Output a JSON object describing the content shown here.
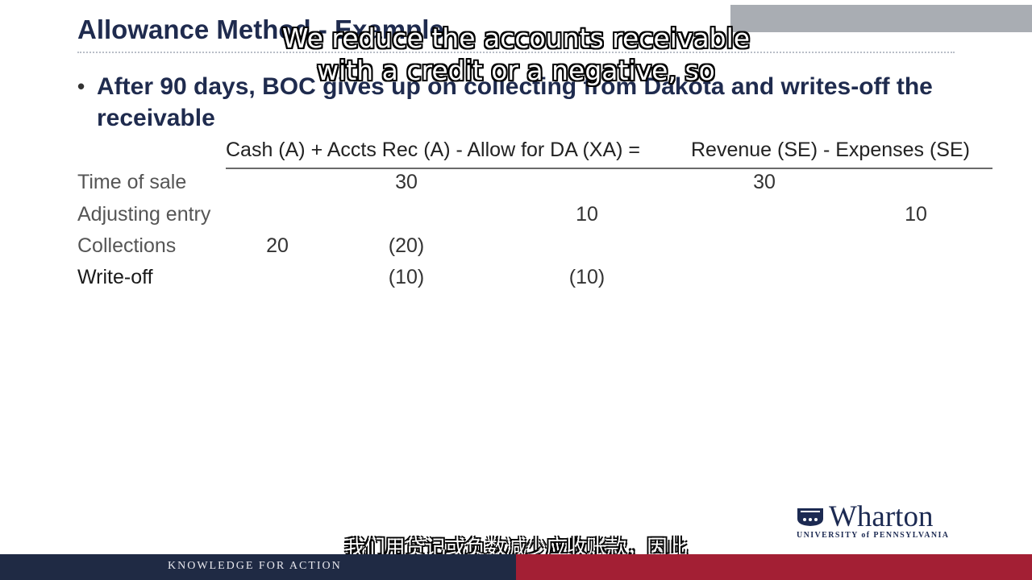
{
  "slide": {
    "title": "Allowance Method - Example",
    "bullet": "After 90 days, BOC gives up on collecting from Dakota and writes-off the receivable"
  },
  "equation": {
    "left": "Cash (A) + Accts Rec (A) - Allow for DA (XA) =",
    "right": "Revenue (SE) - Expenses (SE)"
  },
  "rows": [
    {
      "label": "Time of sale",
      "cash": "",
      "accts_rec": "30",
      "allow": "",
      "revenue": "30",
      "expenses": ""
    },
    {
      "label": "Adjusting entry",
      "cash": "",
      "accts_rec": "",
      "allow": "10",
      "revenue": "",
      "expenses": "10"
    },
    {
      "label": "Collections",
      "cash": "20",
      "accts_rec": "(20)",
      "allow": "",
      "revenue": "",
      "expenses": ""
    },
    {
      "label": "Write-off",
      "cash": "",
      "accts_rec": "(10)",
      "allow": "(10)",
      "revenue": "",
      "expenses": ""
    }
  ],
  "captions": {
    "en_line1": "We reduce the accounts receivable",
    "en_line2": "with a credit or a negative, so",
    "zh": "我们用贷记或负数减少应收账款，因此"
  },
  "branding": {
    "logo_word": "Wharton",
    "logo_sub": "UNIVERSITY of PENNSYLVANIA",
    "tagline": "KNOWLEDGE FOR ACTION"
  },
  "colors": {
    "title": "#1f2b4e",
    "footer_navy": "#1f2a44",
    "footer_red": "#a31f34"
  }
}
